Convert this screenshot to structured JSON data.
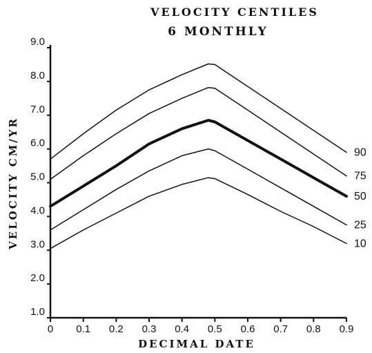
{
  "chart_data": {
    "type": "line",
    "title": "VELOCITY CENTILES",
    "subtitle": "6 MONTHLY",
    "xlabel": "DECIMAL DATE",
    "ylabel": "VELOCITY CM/YR",
    "xlim": [
      0,
      0.9
    ],
    "ylim": [
      1.0,
      9.0
    ],
    "xticks": [
      0,
      0.1,
      0.2,
      0.3,
      0.4,
      0.5,
      0.6,
      0.7,
      0.8,
      0.9
    ],
    "xtick_labels": [
      "0",
      "0.1",
      "0.2",
      "0.3",
      "0.4",
      "0.5",
      "0.6",
      "0.7",
      "0.8",
      "0.9"
    ],
    "yticks": [
      1.0,
      2.0,
      3.0,
      4.0,
      5.0,
      6.0,
      7.0,
      8.0,
      9.0
    ],
    "ytick_labels": [
      "1.0",
      "2.0",
      "3.0",
      "4.0",
      "5.0",
      "6.0",
      "7.0",
      "8.0",
      "9.0"
    ],
    "grid": false,
    "legend": "none",
    "series": [
      {
        "name": "90",
        "bold": false,
        "x": [
          0,
          0.1,
          0.2,
          0.3,
          0.4,
          0.48,
          0.5,
          0.6,
          0.7,
          0.8,
          0.9
        ],
        "y": [
          5.7,
          6.45,
          7.15,
          7.75,
          8.2,
          8.52,
          8.5,
          7.85,
          7.2,
          6.55,
          5.9
        ]
      },
      {
        "name": "75",
        "bold": false,
        "x": [
          0,
          0.1,
          0.2,
          0.3,
          0.4,
          0.48,
          0.5,
          0.6,
          0.7,
          0.8,
          0.9
        ],
        "y": [
          5.1,
          5.8,
          6.45,
          7.05,
          7.5,
          7.82,
          7.8,
          7.15,
          6.5,
          5.85,
          5.2
        ]
      },
      {
        "name": "50",
        "bold": true,
        "x": [
          0,
          0.1,
          0.2,
          0.3,
          0.4,
          0.48,
          0.5,
          0.6,
          0.7,
          0.8,
          0.9
        ],
        "y": [
          4.3,
          4.9,
          5.5,
          6.15,
          6.6,
          6.85,
          6.8,
          6.25,
          5.7,
          5.15,
          4.6
        ]
      },
      {
        "name": "25",
        "bold": false,
        "x": [
          0,
          0.1,
          0.2,
          0.3,
          0.4,
          0.48,
          0.5,
          0.6,
          0.7,
          0.8,
          0.9
        ],
        "y": [
          3.6,
          4.2,
          4.8,
          5.35,
          5.8,
          6.0,
          5.95,
          5.4,
          4.85,
          4.3,
          3.75
        ]
      },
      {
        "name": "10",
        "bold": false,
        "x": [
          0,
          0.1,
          0.2,
          0.3,
          0.4,
          0.48,
          0.5,
          0.6,
          0.7,
          0.8,
          0.9
        ],
        "y": [
          3.05,
          3.6,
          4.1,
          4.6,
          4.95,
          5.15,
          5.12,
          4.65,
          4.15,
          3.7,
          3.2
        ]
      }
    ]
  }
}
